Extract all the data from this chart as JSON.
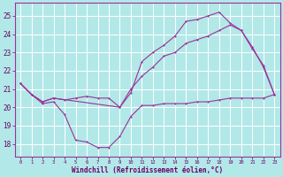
{
  "bg_color": "#b3e8e8",
  "grid_color": "#ffffff",
  "line_color": "#993399",
  "xlabel": "Windchill (Refroidissement éolien,°C)",
  "xlabel_color": "#660066",
  "tick_color": "#660066",
  "ylabel_ticks": [
    18,
    19,
    20,
    21,
    22,
    23,
    24,
    25
  ],
  "xlim": [
    -0.5,
    23.5
  ],
  "ylim": [
    17.3,
    25.7
  ],
  "curve1_x": [
    0,
    1,
    2,
    3,
    4,
    5,
    6,
    7,
    8,
    9,
    10,
    11,
    12,
    13,
    14,
    15,
    16,
    17,
    18,
    19,
    20,
    21,
    22,
    23
  ],
  "curve1_y": [
    21.3,
    20.7,
    20.2,
    20.3,
    19.6,
    18.2,
    18.1,
    17.8,
    17.8,
    18.4,
    19.5,
    20.1,
    20.1,
    20.2,
    20.2,
    20.2,
    20.3,
    20.3,
    20.4,
    20.5,
    20.5,
    20.5,
    20.5,
    20.7
  ],
  "curve2_x": [
    0,
    1,
    2,
    3,
    4,
    5,
    6,
    7,
    8,
    9,
    10,
    11,
    12,
    13,
    14,
    15,
    16,
    17,
    18,
    19,
    20,
    21,
    22,
    23
  ],
  "curve2_y": [
    21.3,
    20.7,
    20.3,
    20.5,
    20.4,
    20.5,
    20.6,
    20.5,
    20.5,
    20.0,
    21.0,
    21.7,
    22.2,
    22.8,
    23.0,
    23.5,
    23.7,
    23.9,
    24.2,
    24.5,
    24.2,
    23.3,
    22.2,
    20.7
  ],
  "curve3_x": [
    0,
    1,
    2,
    3,
    9,
    10,
    11,
    12,
    13,
    14,
    15,
    16,
    17,
    18,
    19,
    20,
    21,
    22,
    23
  ],
  "curve3_y": [
    21.3,
    20.7,
    20.3,
    20.5,
    20.0,
    20.8,
    22.5,
    23.0,
    23.4,
    23.9,
    24.7,
    24.8,
    25.0,
    25.2,
    24.6,
    24.2,
    23.2,
    22.3,
    20.7
  ]
}
